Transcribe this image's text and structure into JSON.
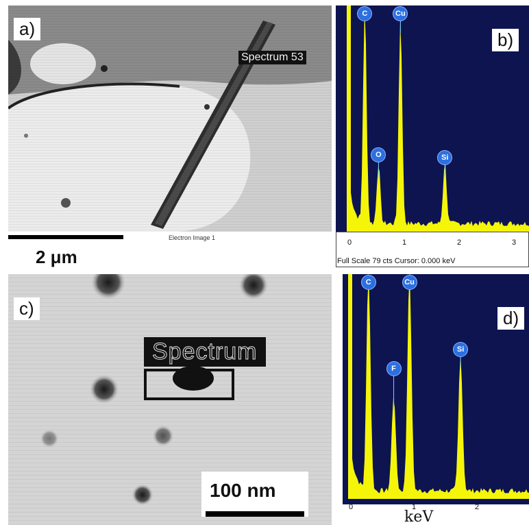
{
  "panel_a": {
    "label": "a)",
    "spectrum_label": "Spectrum 53",
    "caption": "Electron Image 1",
    "scale_bar_text": "2 μm"
  },
  "panel_b": {
    "label": "b)",
    "footer": "Full Scale 79 cts  Cursor: 0.000 keV",
    "x_ticks": [
      "0",
      "1",
      "2",
      "3"
    ],
    "peaks": [
      {
        "element": "C",
        "energy_kev": 0.28
      },
      {
        "element": "O",
        "energy_kev": 0.53
      },
      {
        "element": "Cu",
        "energy_kev": 0.93
      },
      {
        "element": "Si",
        "energy_kev": 1.74
      }
    ],
    "colors": {
      "background": "#0d1450",
      "spectrum": "#f5f50a",
      "peak_tag": "#2c6fe0"
    }
  },
  "panel_c": {
    "label": "c)",
    "spectrum_label": "Spectrum",
    "scale_bar_text": "100 nm"
  },
  "panel_d": {
    "label": "d)",
    "x_label": "keV",
    "x_ticks": [
      "0",
      "1",
      "2"
    ],
    "peaks": [
      {
        "element": "C",
        "energy_kev": 0.28
      },
      {
        "element": "F",
        "energy_kev": 0.68
      },
      {
        "element": "Cu",
        "energy_kev": 0.93
      },
      {
        "element": "Si",
        "energy_kev": 1.74
      }
    ],
    "colors": {
      "background": "#0d1450",
      "spectrum": "#f5f50a",
      "peak_tag": "#2c6fe0"
    }
  }
}
